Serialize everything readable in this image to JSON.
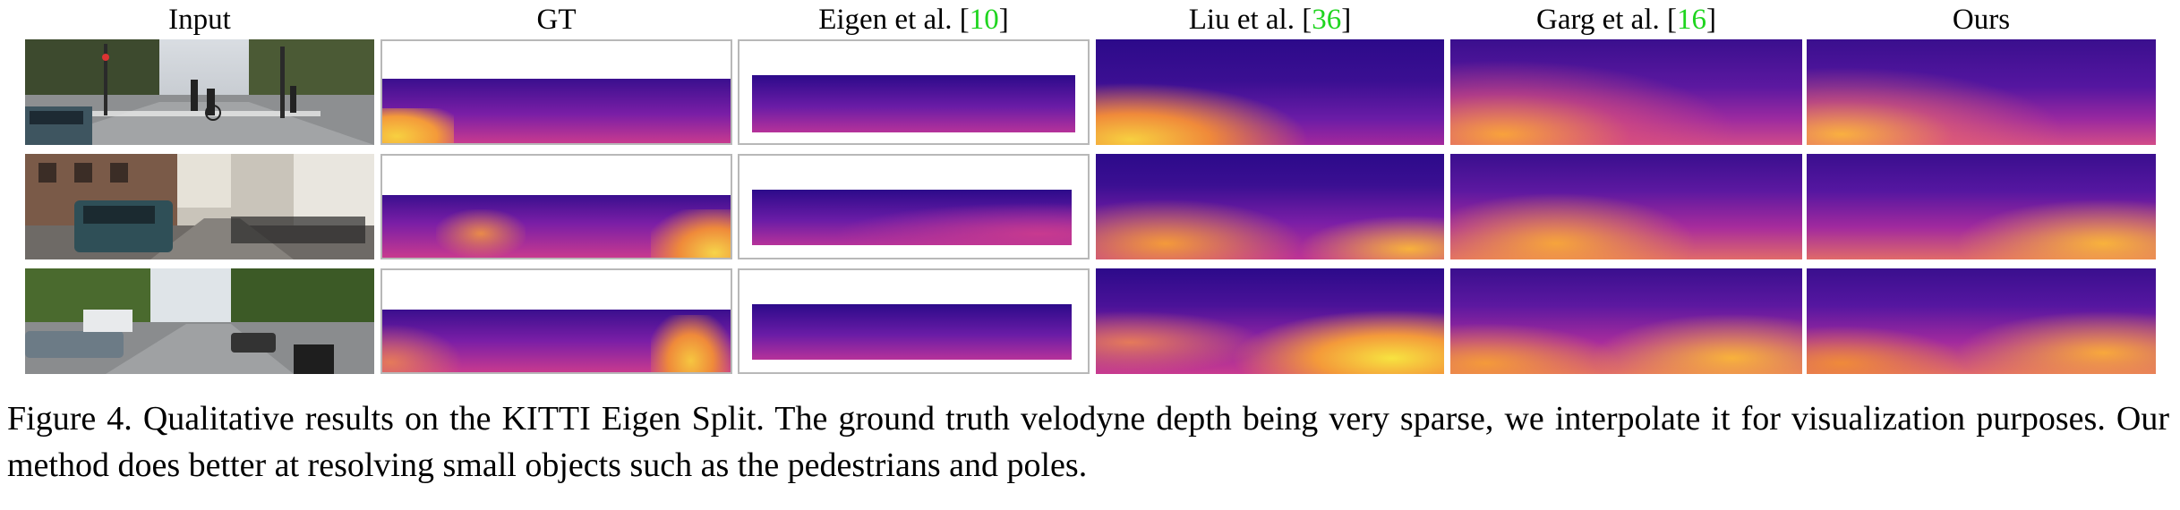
{
  "columns": [
    {
      "name": "Input",
      "cite": ""
    },
    {
      "name": "GT",
      "cite": ""
    },
    {
      "name": "Eigen et al. [",
      "cite": "10",
      "close": "]"
    },
    {
      "name": "Liu et al. [",
      "cite": "36",
      "close": "]"
    },
    {
      "name": "Garg et al. [",
      "cite": "16",
      "close": "]"
    },
    {
      "name": "Ours",
      "cite": ""
    }
  ],
  "colors": {
    "citation": "#1fd51f",
    "depth_far": "#2c0a8a",
    "depth_mid": "#a21ea0",
    "depth_near": "#fba33b",
    "depth_closest": "#f7e340",
    "panel_border": "#b8b8b8"
  },
  "rows": [
    {
      "scene": "street intersection with pedestrians and cyclist"
    },
    {
      "scene": "residential street with parked van and bicycles"
    },
    {
      "scene": "tree-lined street with parked cars and scooter"
    }
  ],
  "caption": "Figure 4. Qualitative results on the KITTI Eigen Split. The ground truth velodyne depth being very sparse, we interpolate it for visualization purposes. Our method does better at resolving small objects such as the pedestrians and poles."
}
